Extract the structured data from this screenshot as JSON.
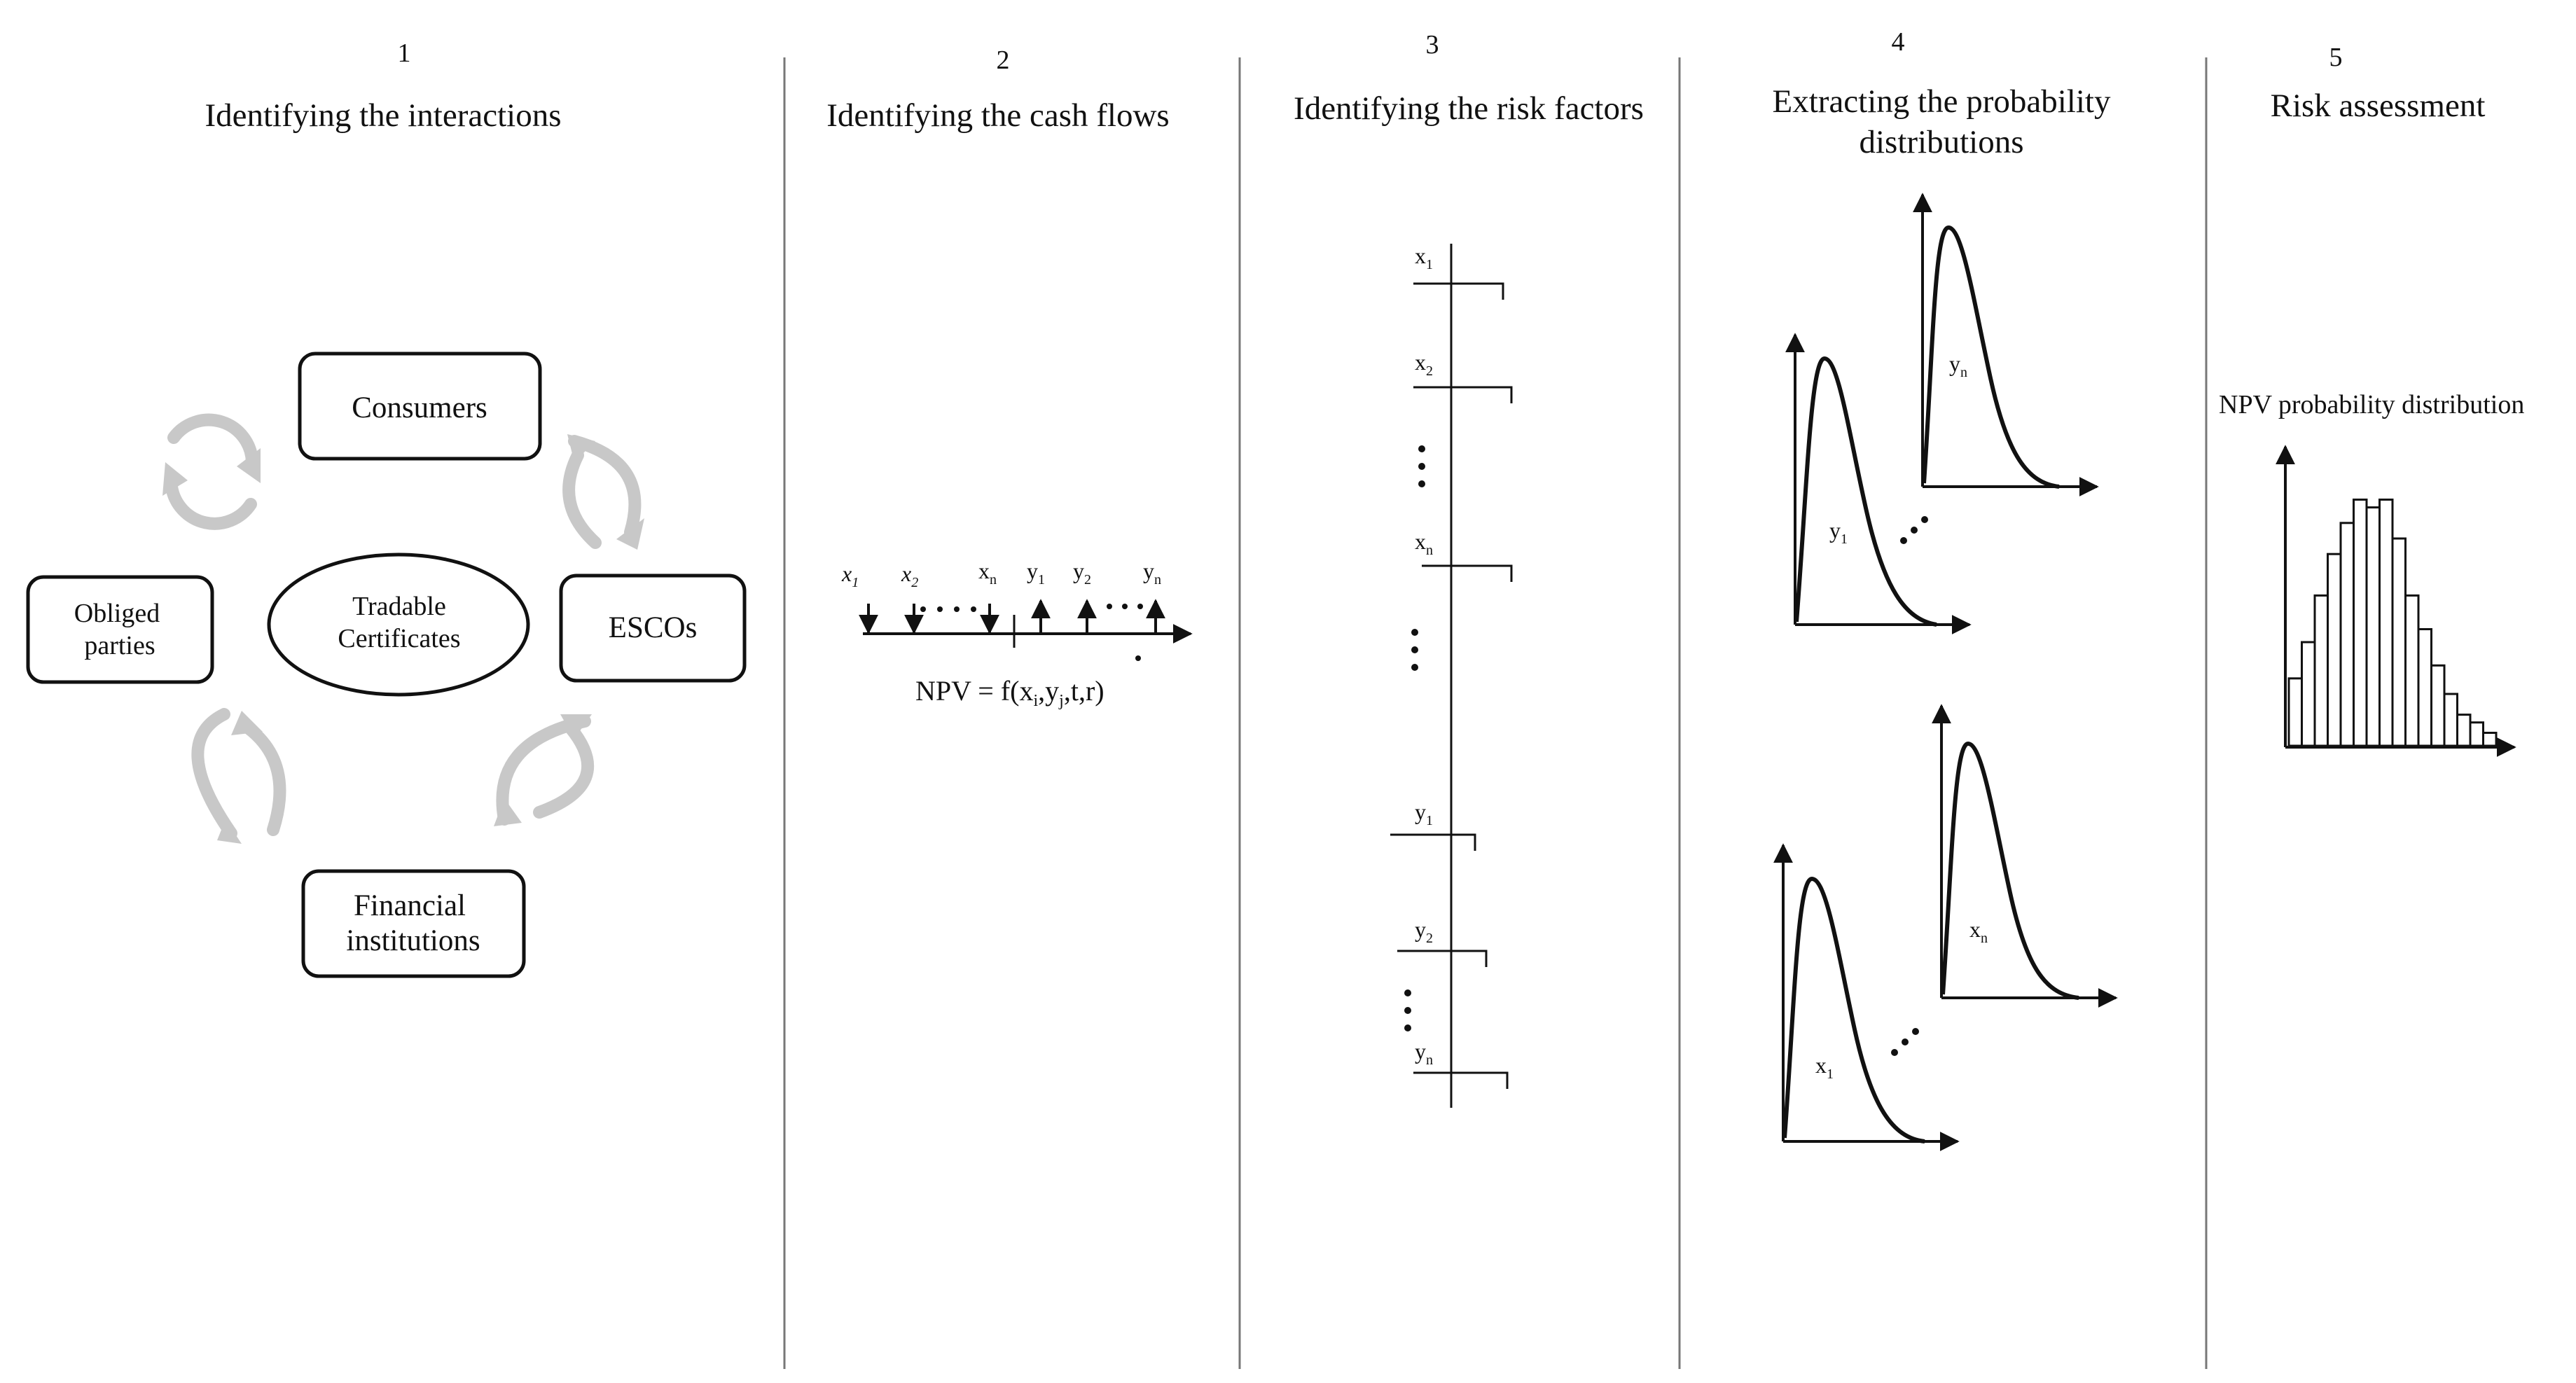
{
  "columns": [
    {
      "number": "1",
      "title": "Identifying the interactions"
    },
    {
      "number": "2",
      "title": "Identifying the cash flows"
    },
    {
      "number": "3",
      "title": "Identifying the risk factors"
    },
    {
      "number": "4",
      "title_line1": "Extracting the probability",
      "title_line2": "distributions"
    },
    {
      "number": "5",
      "title": "Risk assessment"
    }
  ],
  "interactions": {
    "consumers": "Consumers",
    "escos": "ESCOs",
    "obliged_line1": "Obliged",
    "obliged_line2": "parties",
    "financial_line1": "Financial",
    "financial_line2": "institutions",
    "center_line1": "Tradable",
    "center_line2": "Certificates"
  },
  "cash_flows": {
    "labels": [
      {
        "base": "x",
        "sub": "1"
      },
      {
        "base": "x",
        "sub": "2"
      },
      {
        "base": "x",
        "sub": "n"
      },
      {
        "base": "y",
        "sub": "1"
      },
      {
        "base": "y",
        "sub": "2"
      },
      {
        "base": "y",
        "sub": "n"
      }
    ],
    "npv_formula": "NPV = f(x",
    "npv_sub1": "i",
    "npv_mid": ",y",
    "npv_sub2": "j",
    "npv_end": ",t,r)"
  },
  "risk_factors": [
    {
      "base": "x",
      "sub": "1"
    },
    {
      "base": "x",
      "sub": "2"
    },
    {
      "base": "x",
      "sub": "n"
    },
    {
      "base": "y",
      "sub": "1"
    },
    {
      "base": "y",
      "sub": "2"
    },
    {
      "base": "y",
      "sub": "n"
    }
  ],
  "distributions": [
    {
      "base": "y",
      "sub": "1"
    },
    {
      "base": "y",
      "sub": "n"
    },
    {
      "base": "x",
      "sub": "1"
    },
    {
      "base": "x",
      "sub": "n"
    }
  ],
  "assessment": {
    "label": "NPV probability distribution",
    "histogram": [
      0.26,
      0.4,
      0.58,
      0.74,
      0.86,
      0.95,
      0.92,
      0.95,
      0.8,
      0.58,
      0.45,
      0.31,
      0.2,
      0.12,
      0.09,
      0.05
    ]
  }
}
